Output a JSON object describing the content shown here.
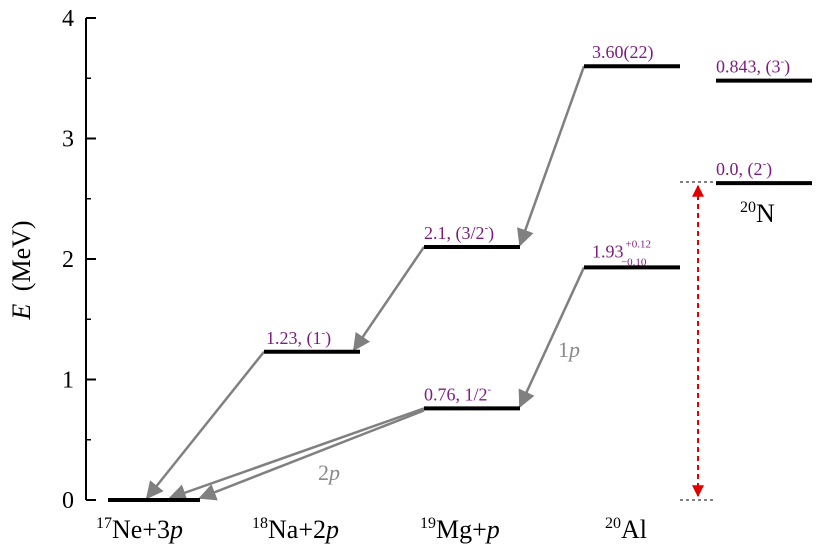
{
  "chart_data": {
    "type": "level-scheme",
    "ylabel_italic": "E",
    "ylabel_unit": "(MeV)",
    "ylim": [
      0,
      4
    ],
    "yticks": [
      "0",
      "1",
      "2",
      "3",
      "4"
    ],
    "colors": {
      "level": "#000000",
      "label": "#7b1c7f",
      "arrow": "#808080",
      "gap": "#e00000"
    },
    "levels": [
      {
        "id": "ne17",
        "energy": 0.0,
        "label": ""
      },
      {
        "id": "na18",
        "energy": 1.23,
        "label": "1.23, (1",
        "sup": "-",
        "tail": ")"
      },
      {
        "id": "mg19_exc",
        "energy": 2.1,
        "label": "2.1, (3/2",
        "sup": "-",
        "tail": ")"
      },
      {
        "id": "mg19_gs",
        "energy": 0.76,
        "label": "0.76, 1/2",
        "sup": "-",
        "tail": ""
      },
      {
        "id": "al20_exc",
        "energy": 3.6,
        "label": "3.60(22)",
        "sup": "",
        "tail": ""
      },
      {
        "id": "al20_gs",
        "energy": 1.93,
        "label": "1.93",
        "sup_up": "+0.12",
        "sub_down": "−0.10"
      },
      {
        "id": "n20_exc",
        "energy": 3.48,
        "label": "0.843, (3",
        "sup": "-",
        "tail": ")"
      },
      {
        "id": "n20_gs",
        "energy": 2.63,
        "label": "0.0, (2",
        "sup": "-",
        "tail": ")"
      }
    ],
    "arrows": [
      {
        "from": "al20_exc",
        "to": "mg19_exc"
      },
      {
        "from": "mg19_exc",
        "to": "na18"
      },
      {
        "from": "na18",
        "to": "ne17"
      },
      {
        "from": "al20_gs",
        "to": "mg19_gs"
      },
      {
        "from": "mg19_gs",
        "to": "ne17",
        "second": false
      },
      {
        "from": "mg19_gs",
        "to": "ne17",
        "second": true
      }
    ],
    "decay_labels": {
      "one_p_num": "1",
      "one_p_sym": "p",
      "two_p_num": "2",
      "two_p_sym": "p"
    },
    "nuclei": [
      {
        "mass": "17",
        "text": "Ne+3",
        "italic": "p"
      },
      {
        "mass": "18",
        "text": "Na+2",
        "italic": "p"
      },
      {
        "mass": "19",
        "text": "Mg+",
        "italic": "p"
      },
      {
        "mass": "20",
        "text": "Al",
        "italic": ""
      }
    ],
    "n20_label": {
      "mass": "20",
      "text": "N"
    }
  }
}
